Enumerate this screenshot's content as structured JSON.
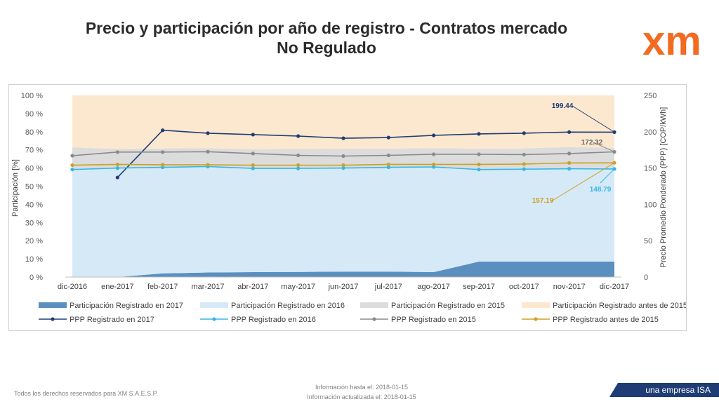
{
  "header": {
    "title_line1": "Precio y participación por año de registro - Contratos mercado",
    "title_line2": "No Regulado",
    "logo_text": "xm",
    "logo_color": "#f26b21"
  },
  "chart_data": {
    "type": "area",
    "categories": [
      "dic-2016",
      "ene-2017",
      "feb-2017",
      "mar-2017",
      "abr-2017",
      "may-2017",
      "jun-2017",
      "jul-2017",
      "ago-2017",
      "sep-2017",
      "oct-2017",
      "nov-2017",
      "dic-2017"
    ],
    "y_left": {
      "label": "Participación [%]",
      "ticks": [
        "0 %",
        "10 %",
        "20 %",
        "30 %",
        "40 %",
        "50 %",
        "60 %",
        "70 %",
        "80 %",
        "90 %",
        "100 %"
      ],
      "range": [
        0,
        100
      ]
    },
    "y_right": {
      "label": "Precio Promedio Ponderado (PPP) [COP/kWh]",
      "ticks": [
        "0",
        "50",
        "100",
        "150",
        "200",
        "250"
      ],
      "range": [
        0,
        250
      ]
    },
    "areas": [
      {
        "name": "Participación Registrado en  2017",
        "color": "#5b8fbf",
        "values": [
          0,
          0,
          2,
          2.5,
          2.7,
          2.8,
          3,
          3,
          2.7,
          8.5,
          8.5,
          8.5,
          8.5
        ]
      },
      {
        "name": "Participación Registrado en  2016",
        "color": "#d6e9f7",
        "values": [
          59.6,
          60.2,
          58.6,
          58.2,
          57.5,
          57.4,
          57.2,
          57.5,
          58.2,
          51,
          51.3,
          51.6,
          51.6
        ]
      },
      {
        "name": "Participación Registrado en  2015",
        "color": "#dcdcdc",
        "values": [
          11.8,
          10.3,
          10.2,
          10.2,
          10.2,
          10.3,
          10.5,
          10.2,
          10.1,
          11.2,
          11,
          11.5,
          11
        ]
      },
      {
        "name": "Participación Registrado antes de  2015",
        "color": "#fce8cf",
        "values": [
          28.6,
          29.5,
          29.2,
          29.1,
          29.6,
          29.5,
          29.3,
          29.3,
          29,
          29.3,
          29.2,
          28.4,
          28.9
        ]
      }
    ],
    "lines": [
      {
        "name": "PPP Registrado en  2017",
        "color": "#1f3d74",
        "values": [
          null,
          137,
          202,
          198,
          196,
          194,
          191,
          192,
          195,
          197,
          198,
          199.5,
          199.44
        ]
      },
      {
        "name": "PPP Registrado en  2016",
        "color": "#35b7e5",
        "values": [
          148,
          150,
          151,
          152,
          149.5,
          149.5,
          150,
          151,
          151.5,
          148,
          148.5,
          149,
          148.79
        ]
      },
      {
        "name": "PPP Registrado en  2015",
        "color": "#8a8a8a",
        "values": [
          167,
          172,
          172,
          172.5,
          170,
          167.5,
          166.5,
          167.5,
          169,
          169,
          168.5,
          170,
          172.32
        ]
      },
      {
        "name": "PPP Registrado antes de  2015",
        "color": "#c9a227",
        "values": [
          154,
          155,
          154.5,
          154.5,
          154,
          154,
          154,
          155,
          155,
          155,
          155.5,
          157,
          157.19
        ]
      }
    ],
    "annotations": [
      {
        "text": "199.44",
        "series": "PPP Registrado en  2017",
        "color": "#1f3d74"
      },
      {
        "text": "172.32",
        "series": "PPP Registrado en  2015",
        "color": "#666666"
      },
      {
        "text": "148.79",
        "series": "PPP Registrado en  2016",
        "color": "#35b7e5"
      },
      {
        "text": "157.19",
        "series": "PPP Registrado antes de  2015",
        "color": "#c9a227"
      }
    ],
    "legend_position": "bottom"
  },
  "footer": {
    "rights": "Todos los derechos reservados para XM S.A.E.S.P.",
    "info_until": "Información hasta el: 2018-01-15",
    "info_updated": "Información actualizada el: 2018-01-15",
    "band_text": "una empresa ISA"
  }
}
